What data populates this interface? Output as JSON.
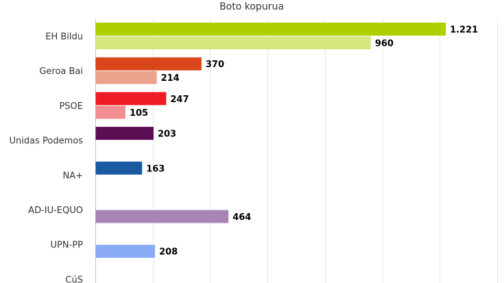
{
  "chart_data": {
    "type": "bar",
    "orientation": "horizontal",
    "title": "Boto kopurua",
    "xlim": [
      0,
      1400
    ],
    "grid": true,
    "categories": [
      "EH Bildu",
      "Geroa Bai",
      "PSOE",
      "Unidas Podemos",
      "NA+",
      "AD-IU-EQUO",
      "UPN-PP",
      "CúS"
    ],
    "bars": [
      {
        "category": "EH Bildu",
        "slot": "primary",
        "value": 1221,
        "label": "1.221",
        "color": "#aecf00"
      },
      {
        "category": "EH Bildu",
        "slot": "secondary",
        "value": 960,
        "label": "960",
        "color": "#d6e780"
      },
      {
        "category": "Geroa Bai",
        "slot": "primary",
        "value": 370,
        "label": "370",
        "color": "#d8461a"
      },
      {
        "category": "Geroa Bai",
        "slot": "secondary",
        "value": 214,
        "label": "214",
        "color": "#e9a38a"
      },
      {
        "category": "PSOE",
        "slot": "primary",
        "value": 247,
        "label": "247",
        "color": "#ee1c25"
      },
      {
        "category": "PSOE",
        "slot": "secondary",
        "value": 105,
        "label": "105",
        "color": "#f38e93"
      },
      {
        "category": "Unidas Podemos",
        "slot": "primary",
        "value": 203,
        "label": "203",
        "color": "#5b0e54"
      },
      {
        "category": "NA+",
        "slot": "primary",
        "value": 163,
        "label": "163",
        "color": "#1a5aa0"
      },
      {
        "category": "AD-IU-EQUO",
        "slot": "secondary",
        "value": 464,
        "label": "464",
        "color": "#a885b4"
      },
      {
        "category": "UPN-PP",
        "slot": "secondary",
        "value": 208,
        "label": "208",
        "color": "#89aaf4"
      }
    ]
  }
}
